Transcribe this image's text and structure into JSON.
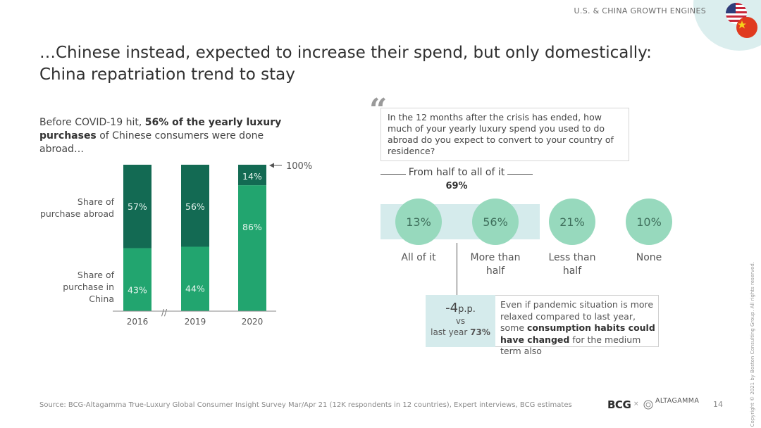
{
  "header": {
    "label": "U.S. & CHINA GROWTH ENGINES"
  },
  "title": {
    "line1": "…Chinese instead, expected to increase their spend, but only domestically:",
    "line2": "China repatriation trend to stay"
  },
  "intro": {
    "part1": "Before COVID-19 hit, ",
    "bold1": "56% of the yearly luxury purchases",
    "part2": " of Chinese consumers were done abroad…"
  },
  "chart_data": {
    "type": "bar",
    "stacked": true,
    "categories": [
      "2016",
      "2019",
      "2020"
    ],
    "series": [
      {
        "name": "Share of purchase in China",
        "values": [
          43,
          44,
          86
        ],
        "labels": [
          "43%",
          "44%",
          "86%"
        ],
        "color": "#22a56f"
      },
      {
        "name": "Share of purchase abroad",
        "values": [
          57,
          56,
          14
        ],
        "labels": [
          "57%",
          "56%",
          "14%"
        ],
        "color": "#136a53"
      }
    ],
    "total_label": "100%",
    "axis_break_symbol": "//",
    "ylim": [
      0,
      100
    ]
  },
  "chart_labels": {
    "abroad": "Share of purchase abroad",
    "china": "Share of purchase in China"
  },
  "survey": {
    "quote_mark": "“",
    "question": "In the 12 months after the crisis has ended, how much of your yearly luxury spend you used to do abroad do you expect to convert to your country of residence?",
    "bracket_label": "From half to all of it",
    "bracket_value": "69%",
    "answers": [
      {
        "value": "13%",
        "label": "All of it"
      },
      {
        "value": "56%",
        "label": "More than half"
      },
      {
        "value": "21%",
        "label": "Less than half"
      },
      {
        "value": "10%",
        "label": "None"
      }
    ],
    "delta": {
      "value": "-4",
      "unit": "p.p.",
      "vs": "vs",
      "last_year_prefix": "last year ",
      "last_year_value": "73%"
    },
    "note": {
      "part1": "Even if pandemic situation is more relaxed compared to last year, some ",
      "bold": "consumption habits could have changed",
      "part2": " for the medium term also"
    }
  },
  "footer": {
    "source": "Source: BCG-Altagamma True-Luxury Global Consumer Insight Survey Mar/Apr 21 (12K respondents in 12 countries), Expert interviews, BCG estimates",
    "bcg_logo": "BCG",
    "cross": "×",
    "altagamma_logo": "ALTAGAMMA",
    "page": "14",
    "copyright": "Copyright © 2021 by Boston Consulting Group. All rights reserved."
  },
  "colors": {
    "dark_green": "#136a53",
    "green": "#22a56f",
    "circle": "#97d9bd",
    "band": "#d5ebec"
  }
}
